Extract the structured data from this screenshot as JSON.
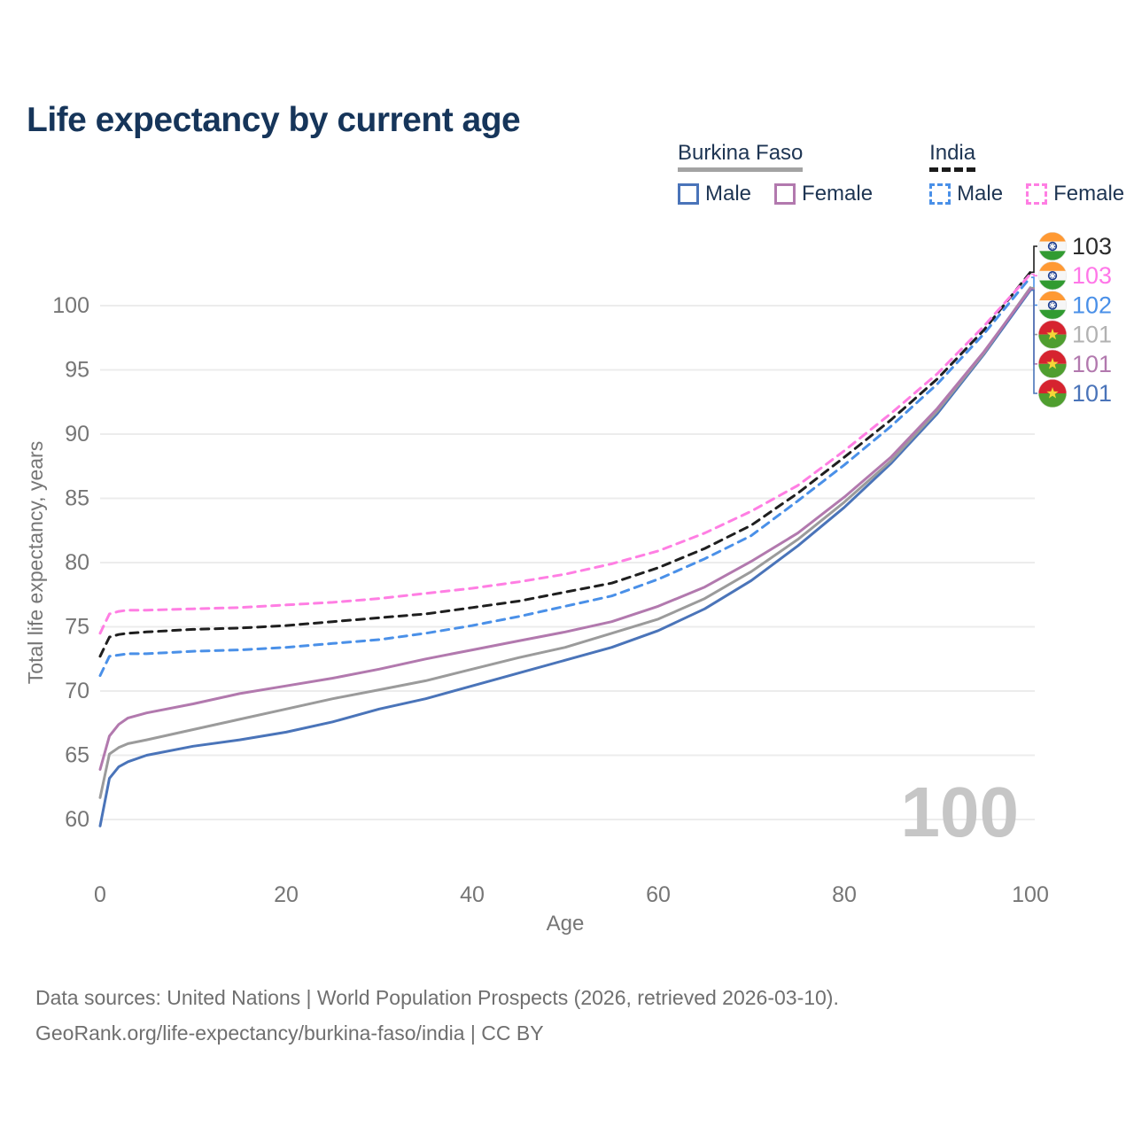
{
  "title": "Life expectancy by current age",
  "legend": {
    "groups": [
      {
        "title": "Burkina Faso",
        "underline_color": "#a3a3a3",
        "underline_style": "solid",
        "items": [
          {
            "label": "Male",
            "color": "#4a74b9",
            "dashed": false
          },
          {
            "label": "Female",
            "color": "#b279ae",
            "dashed": false
          }
        ]
      },
      {
        "title": "India",
        "underline_color": "#1b1b1b",
        "underline_style": "dashed",
        "items": [
          {
            "label": "Male",
            "color": "#4a90e8",
            "dashed": true
          },
          {
            "label": "Female",
            "color": "#ff7ee3",
            "dashed": true
          }
        ]
      }
    ]
  },
  "watermark": {
    "text": "100"
  },
  "footer": {
    "line1": "Data sources: United Nations | World Population Prospects (2026, retrieved 2026-03-10).",
    "line2": "GeoRank.org/life-expectancy/burkina-faso/india | CC BY"
  },
  "chart_data": {
    "type": "line",
    "title": "Life expectancy by current age",
    "xlabel": "Age",
    "ylabel": "Total life expectancy, years",
    "xlim": [
      0,
      100
    ],
    "ylim": [
      60,
      100
    ],
    "x_ticks": [
      0,
      20,
      40,
      60,
      80,
      100
    ],
    "y_ticks": [
      60,
      65,
      70,
      75,
      80,
      85,
      90,
      95,
      100
    ],
    "grid": "horizontal",
    "legend_position": "top-right",
    "ages": [
      0,
      1,
      2,
      3,
      5,
      10,
      15,
      20,
      25,
      30,
      35,
      40,
      45,
      50,
      55,
      60,
      65,
      70,
      75,
      80,
      85,
      90,
      95,
      100
    ],
    "series": [
      {
        "name": "Burkina Faso male",
        "color": "#4a74b9",
        "dashed": false,
        "flag": "burkina-faso",
        "end_label": "101",
        "end_label_color": "#4a74b9",
        "values": [
          59.5,
          63.2,
          64.1,
          64.5,
          65.0,
          65.7,
          66.2,
          66.8,
          67.6,
          68.6,
          69.4,
          70.4,
          71.4,
          72.4,
          73.4,
          74.7,
          76.4,
          78.6,
          81.3,
          84.3,
          87.7,
          91.6,
          96.2,
          101.2
        ]
      },
      {
        "name": "Burkina Faso both sexes",
        "color": "#9b9b9b",
        "dashed": false,
        "flag": "burkina-faso",
        "end_label": "101",
        "end_label_color": "#b2b2b2",
        "values": [
          61.7,
          65.1,
          65.6,
          65.9,
          66.2,
          67.0,
          67.8,
          68.6,
          69.4,
          70.1,
          70.8,
          71.7,
          72.6,
          73.4,
          74.5,
          75.6,
          77.2,
          79.3,
          81.8,
          84.7,
          87.9,
          91.8,
          96.3,
          101.4
        ]
      },
      {
        "name": "Burkina Faso female",
        "color": "#b279ae",
        "dashed": false,
        "flag": "burkina-faso",
        "end_label": "101",
        "end_label_color": "#b279ae",
        "values": [
          63.9,
          66.5,
          67.4,
          67.9,
          68.3,
          69.0,
          69.8,
          70.4,
          71.0,
          71.7,
          72.5,
          73.2,
          73.9,
          74.6,
          75.4,
          76.6,
          78.1,
          80.1,
          82.3,
          85.1,
          88.2,
          92.0,
          96.4,
          101.3
        ]
      },
      {
        "name": "India male",
        "color": "#4a90e8",
        "dashed": true,
        "flag": "india",
        "end_label": "102",
        "end_label_color": "#4a90e8",
        "values": [
          71.2,
          72.7,
          72.8,
          72.9,
          72.9,
          73.1,
          73.2,
          73.4,
          73.7,
          74.0,
          74.5,
          75.1,
          75.8,
          76.6,
          77.4,
          78.7,
          80.3,
          82.1,
          84.8,
          87.6,
          90.6,
          93.9,
          97.8,
          102.2
        ]
      },
      {
        "name": "India both sexes",
        "color": "#1f1f1f",
        "dashed": true,
        "flag": "india",
        "end_label": "103",
        "end_label_color": "#2b2b2b",
        "values": [
          72.7,
          74.2,
          74.4,
          74.5,
          74.6,
          74.8,
          74.9,
          75.1,
          75.4,
          75.7,
          76.0,
          76.5,
          77.0,
          77.7,
          78.4,
          79.6,
          81.1,
          82.9,
          85.4,
          88.2,
          91.1,
          94.3,
          98.1,
          102.6
        ]
      },
      {
        "name": "India female",
        "color": "#ff7ee3",
        "dashed": true,
        "flag": "india",
        "end_label": "103",
        "end_label_color": "#ff77e8",
        "values": [
          74.5,
          76.0,
          76.2,
          76.3,
          76.3,
          76.4,
          76.5,
          76.7,
          76.9,
          77.2,
          77.6,
          78.0,
          78.5,
          79.1,
          79.9,
          80.9,
          82.3,
          84.0,
          86.0,
          88.7,
          91.6,
          94.7,
          98.4,
          102.45
        ]
      }
    ]
  }
}
